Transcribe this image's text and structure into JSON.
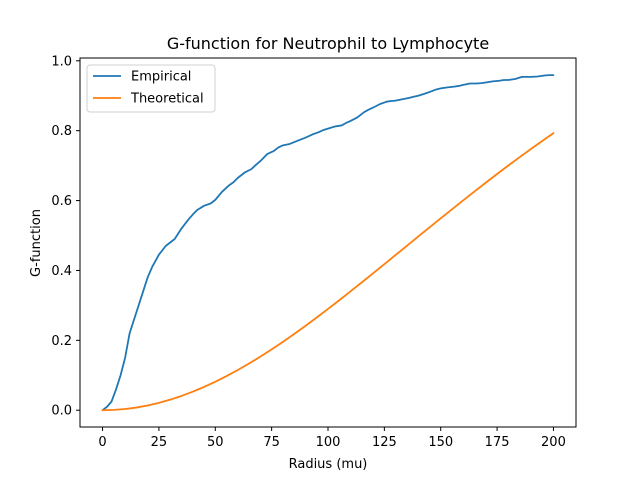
{
  "chart_data": {
    "type": "line",
    "title": "G-function for Neutrophil to Lymphocyte",
    "xlabel": "Radius (mu)",
    "ylabel": "G-function",
    "xlim": [
      -10,
      210
    ],
    "ylim": [
      -0.048,
      1.008
    ],
    "xticks": [
      0,
      25,
      50,
      75,
      100,
      125,
      150,
      175,
      200
    ],
    "yticks": [
      0.0,
      0.2,
      0.4,
      0.6,
      0.8,
      1.0
    ],
    "xtick_labels": [
      "0",
      "25",
      "50",
      "75",
      "100",
      "125",
      "150",
      "175",
      "200"
    ],
    "ytick_labels": [
      "0.0",
      "0.2",
      "0.4",
      "0.6",
      "0.8",
      "1.0"
    ],
    "legend_position": "upper-left",
    "grid": false,
    "series": [
      {
        "name": "Empirical",
        "color": "#1f77b4",
        "x": [
          0,
          2,
          4,
          6,
          8,
          10,
          12,
          15,
          18,
          20,
          22,
          25,
          28,
          30,
          32,
          35,
          38,
          40,
          42,
          45,
          48,
          50,
          53,
          56,
          58,
          60,
          63,
          66,
          68,
          70,
          73,
          76,
          78,
          80,
          83,
          86,
          88,
          90,
          93,
          96,
          98,
          100,
          103,
          106,
          108,
          110,
          113,
          116,
          118,
          120,
          123,
          126,
          128,
          130,
          133,
          136,
          138,
          140,
          143,
          146,
          148,
          150,
          153,
          156,
          158,
          160,
          163,
          166,
          168,
          170,
          173,
          176,
          178,
          180,
          183,
          186,
          188,
          190,
          193,
          196,
          198,
          200
        ],
        "y": [
          0.0,
          0.01,
          0.025,
          0.06,
          0.1,
          0.15,
          0.22,
          0.28,
          0.34,
          0.38,
          0.41,
          0.445,
          0.47,
          0.48,
          0.49,
          0.52,
          0.545,
          0.56,
          0.573,
          0.585,
          0.592,
          0.602,
          0.625,
          0.643,
          0.652,
          0.665,
          0.68,
          0.69,
          0.702,
          0.713,
          0.733,
          0.742,
          0.752,
          0.758,
          0.762,
          0.77,
          0.775,
          0.78,
          0.789,
          0.796,
          0.802,
          0.806,
          0.812,
          0.815,
          0.822,
          0.828,
          0.838,
          0.853,
          0.86,
          0.866,
          0.876,
          0.883,
          0.885,
          0.886,
          0.89,
          0.894,
          0.897,
          0.9,
          0.906,
          0.913,
          0.918,
          0.921,
          0.924,
          0.926,
          0.928,
          0.931,
          0.935,
          0.935,
          0.936,
          0.938,
          0.941,
          0.943,
          0.945,
          0.945,
          0.948,
          0.954,
          0.954,
          0.954,
          0.955,
          0.958,
          0.959,
          0.959
        ]
      },
      {
        "name": "Theoretical",
        "color": "#ff7f0e",
        "x": [
          0,
          5,
          10,
          15,
          20,
          25,
          30,
          35,
          40,
          45,
          50,
          55,
          60,
          65,
          70,
          75,
          80,
          85,
          90,
          95,
          100,
          105,
          110,
          115,
          120,
          125,
          130,
          135,
          140,
          145,
          150,
          155,
          160,
          165,
          170,
          175,
          180,
          185,
          190,
          195,
          200
        ],
        "y": [
          0.0,
          0.0009,
          0.0034,
          0.0076,
          0.0136,
          0.0211,
          0.0302,
          0.0408,
          0.053,
          0.0665,
          0.0814,
          0.0977,
          0.1151,
          0.1337,
          0.1534,
          0.1741,
          0.1957,
          0.2182,
          0.2414,
          0.2653,
          0.2898,
          0.3148,
          0.3402,
          0.3659,
          0.3919,
          0.418,
          0.4443,
          0.4706,
          0.4969,
          0.5231,
          0.5492,
          0.5751,
          0.6008,
          0.6262,
          0.6513,
          0.676,
          0.7003,
          0.7242,
          0.7476,
          0.7705,
          0.793
        ]
      }
    ]
  }
}
